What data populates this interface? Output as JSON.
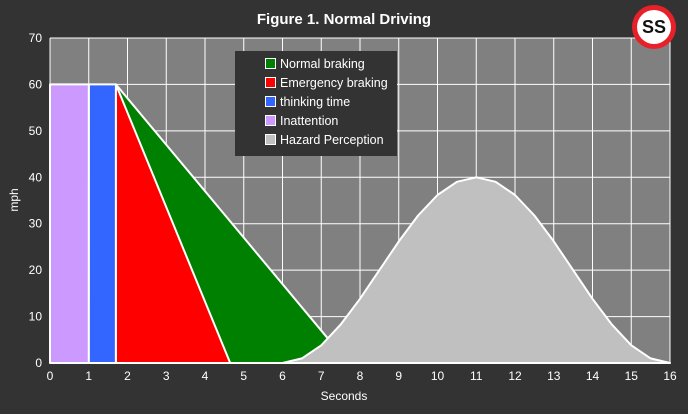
{
  "chart_data": {
    "type": "area",
    "title": "Figure 1. Normal Driving",
    "xlabel": "Seconds",
    "ylabel": "mph",
    "xlim": [
      0,
      16
    ],
    "ylim": [
      0,
      70
    ],
    "xticks": [
      0,
      1,
      2,
      3,
      4,
      5,
      6,
      7,
      8,
      9,
      10,
      11,
      12,
      13,
      14,
      15,
      16
    ],
    "yticks": [
      0,
      10,
      20,
      30,
      40,
      50,
      60,
      70
    ],
    "grid": true,
    "legend_position": "top-center",
    "series": [
      {
        "name": "Normal braking",
        "color": "#008000",
        "points": [
          [
            1.7,
            60
          ],
          [
            7.2,
            5
          ],
          [
            7.75,
            0
          ]
        ]
      },
      {
        "name": "Emergency braking",
        "color": "#ff0000",
        "points": [
          [
            1.7,
            60
          ],
          [
            4.65,
            0
          ]
        ]
      },
      {
        "name": "thinking time",
        "color": "#3366ff",
        "points": [
          [
            1,
            60
          ],
          [
            1.7,
            60
          ]
        ]
      },
      {
        "name": "Inattention",
        "color": "#cc99ff",
        "points": [
          [
            0,
            60
          ],
          [
            1,
            60
          ]
        ]
      },
      {
        "name": "Hazard Perception",
        "color": "#c0c0c0",
        "points": [
          [
            6,
            0
          ],
          [
            6.5,
            0.98
          ],
          [
            7,
            3.82
          ],
          [
            7.5,
            8.26
          ],
          [
            8,
            13.82
          ],
          [
            8.5,
            20
          ],
          [
            9,
            26.18
          ],
          [
            9.5,
            31.76
          ],
          [
            10,
            36.18
          ],
          [
            10.5,
            39.02
          ],
          [
            11,
            40
          ],
          [
            11.5,
            39.02
          ],
          [
            12,
            36.18
          ],
          [
            12.5,
            31.76
          ],
          [
            13,
            26.18
          ],
          [
            13.5,
            20
          ],
          [
            14,
            13.82
          ],
          [
            14.5,
            8.26
          ],
          [
            15,
            3.82
          ],
          [
            15.5,
            0.98
          ],
          [
            16,
            0
          ]
        ]
      }
    ]
  },
  "logo": {
    "text": "SS"
  }
}
